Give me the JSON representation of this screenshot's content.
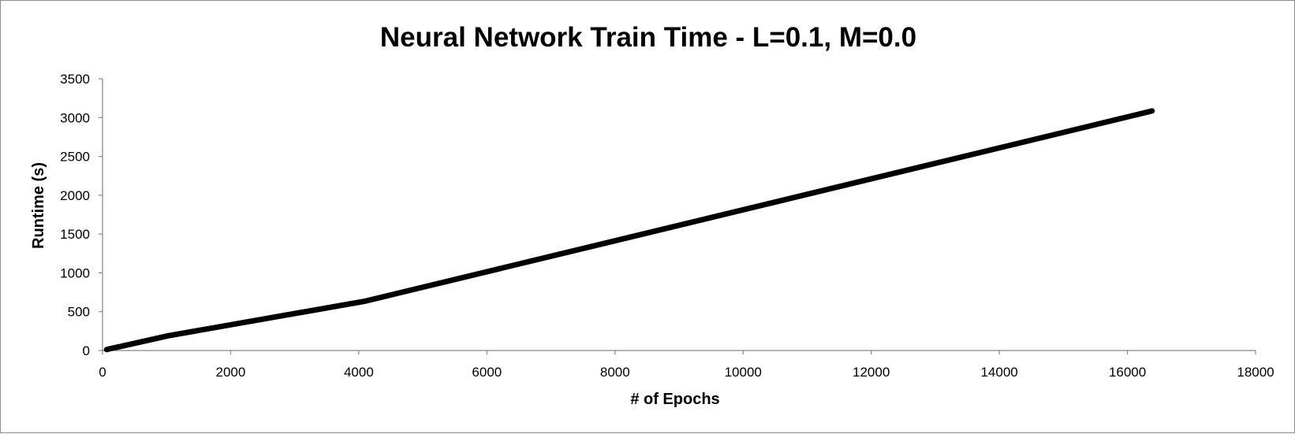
{
  "chart_data": {
    "type": "line",
    "title": "Neural Network Train Time - L=0.1, M=0.0",
    "xlabel": "# of Epochs",
    "ylabel": "Runtime (s)",
    "xlim": [
      0,
      18000
    ],
    "ylim": [
      0,
      3500
    ],
    "xticks": [
      0,
      2000,
      4000,
      6000,
      8000,
      10000,
      12000,
      14000,
      16000,
      18000
    ],
    "yticks": [
      0,
      500,
      1000,
      1500,
      2000,
      2500,
      3000,
      3500
    ],
    "grid": false,
    "legend": "none",
    "series": [
      {
        "color": "#000000",
        "x": [
          64,
          128,
          256,
          1024,
          4096,
          16384
        ],
        "y": [
          12,
          25,
          48,
          190,
          635,
          3085
        ]
      }
    ]
  }
}
